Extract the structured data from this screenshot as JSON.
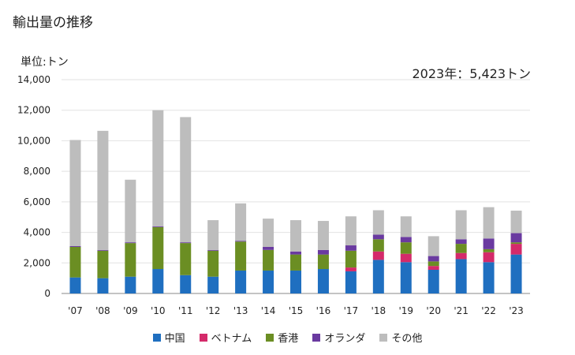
{
  "title": "輸出量の推移",
  "unit_label": "単位:トン",
  "total_label": "2023年：5,423トン",
  "chart_data": {
    "type": "bar",
    "stacked": true,
    "categories": [
      "'07",
      "'08",
      "'09",
      "'10",
      "'11",
      "'12",
      "'13",
      "'14",
      "'15",
      "'16",
      "'17",
      "'18",
      "'19",
      "'20",
      "'21",
      "'22",
      "'23"
    ],
    "yticks": [
      "0",
      "2,000",
      "4,000",
      "6,000",
      "8,000",
      "10,000",
      "12,000",
      "14,000"
    ],
    "ylim": [
      0,
      14000
    ],
    "series": [
      {
        "name": "中国",
        "color": "#1f6fc0",
        "values": [
          1050,
          1000,
          1100,
          1600,
          1200,
          1100,
          1500,
          1500,
          1500,
          1600,
          1450,
          2200,
          2050,
          1550,
          2250,
          2050,
          2550
        ]
      },
      {
        "name": "ベトナム",
        "color": "#d42a6a",
        "values": [
          0,
          0,
          0,
          0,
          0,
          0,
          0,
          0,
          0,
          0,
          250,
          550,
          550,
          250,
          400,
          650,
          700
        ]
      },
      {
        "name": "香港",
        "color": "#6b8e23",
        "values": [
          2000,
          1800,
          2200,
          2750,
          2100,
          1700,
          1900,
          1350,
          1050,
          950,
          1100,
          800,
          750,
          300,
          600,
          200,
          100
        ]
      },
      {
        "name": "オランダ",
        "color": "#6a3aa0",
        "values": [
          50,
          50,
          50,
          50,
          50,
          50,
          50,
          200,
          200,
          300,
          350,
          300,
          350,
          350,
          300,
          700,
          600
        ]
      },
      {
        "name": "その他",
        "color": "#bdbdbd",
        "values": [
          6950,
          7800,
          4100,
          7600,
          8200,
          1950,
          2450,
          1850,
          2050,
          1900,
          1900,
          1600,
          1350,
          1300,
          1900,
          2050,
          1473
        ]
      }
    ]
  }
}
